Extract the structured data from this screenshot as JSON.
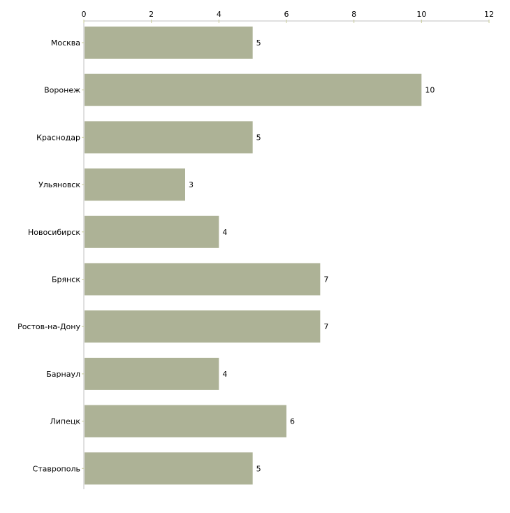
{
  "chart_data": {
    "type": "bar",
    "orientation": "horizontal",
    "title": "",
    "xlabel": "",
    "ylabel": "",
    "categories": [
      "Москва",
      "Воронеж",
      "Краснодар",
      "Ульяновск",
      "Новосибирск",
      "Брянск",
      "Ростов-на-Дону",
      "Барнаул",
      "Липецк",
      "Ставрополь"
    ],
    "values": [
      5,
      10,
      5,
      3,
      4,
      7,
      7,
      4,
      6,
      5
    ],
    "xlim": [
      0,
      12
    ],
    "xticks": [
      0,
      2,
      4,
      6,
      8,
      10,
      12
    ],
    "axis_position": "top",
    "grid": false,
    "legend": "none",
    "colors": {
      "bar": "#adb296",
      "axis": "#c0c0c0",
      "tick": "#c8cc99"
    }
  }
}
